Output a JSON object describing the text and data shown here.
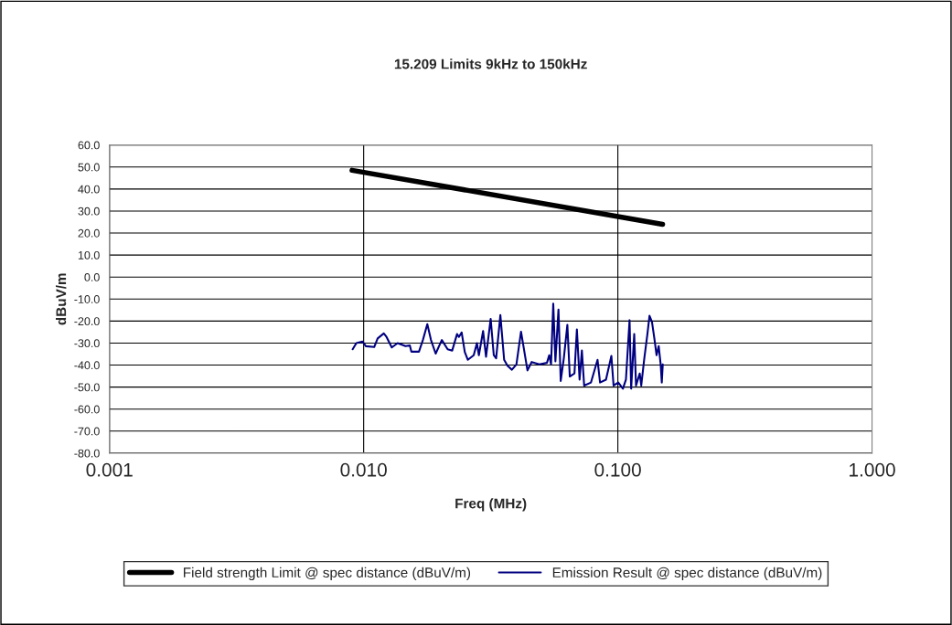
{
  "chart_data": {
    "type": "line",
    "title": "15.209 Limits 9kHz to 150kHz",
    "xlabel": "Freq (MHz)",
    "ylabel": "dBuV/m",
    "log": "x",
    "grid": true,
    "legend": "bottom",
    "xlim": [
      0.001,
      1.0
    ],
    "xticks": [
      {
        "value": 0.001,
        "label": "0.001"
      },
      {
        "value": 0.01,
        "label": "0.010"
      },
      {
        "value": 0.1,
        "label": "0.100"
      },
      {
        "value": 1.0,
        "label": "1.000"
      }
    ],
    "ylim": [
      -80,
      60
    ],
    "yticks": [
      {
        "value": 60,
        "label": "60.0"
      },
      {
        "value": 50,
        "label": "50.0"
      },
      {
        "value": 40,
        "label": "40.0"
      },
      {
        "value": 30,
        "label": "30.0"
      },
      {
        "value": 20,
        "label": "20.0"
      },
      {
        "value": 10,
        "label": "10.0"
      },
      {
        "value": 0,
        "label": "0.0"
      },
      {
        "value": -10,
        "label": "-10.0"
      },
      {
        "value": -20,
        "label": "-20.0"
      },
      {
        "value": -30,
        "label": "-30.0"
      },
      {
        "value": -40,
        "label": "-40.0"
      },
      {
        "value": -50,
        "label": "-50.0"
      },
      {
        "value": -60,
        "label": "-60.0"
      },
      {
        "value": -70,
        "label": "-70.0"
      },
      {
        "value": -80,
        "label": "-80.0"
      }
    ],
    "series": [
      {
        "name": "Field strength Limit @ spec distance (dBuV/m)",
        "color": "#000000",
        "x": [
          0.009,
          0.15
        ],
        "values": [
          48.5,
          24.0
        ]
      },
      {
        "name": "Emission Result @ spec distance (dBuV/m)",
        "color": "#000080",
        "x": [
          0.00905,
          0.00936,
          0.0099,
          0.0102,
          0.011,
          0.01135,
          0.012,
          0.0123,
          0.0129,
          0.0136,
          0.0146,
          0.0152,
          0.0154,
          0.0165,
          0.0171,
          0.0178,
          0.0184,
          0.0192,
          0.0203,
          0.0214,
          0.0223,
          0.0233,
          0.0237,
          0.0243,
          0.025,
          0.0257,
          0.0271,
          0.0279,
          0.0284,
          0.0295,
          0.0303,
          0.0316,
          0.0325,
          0.0332,
          0.0345,
          0.0357,
          0.0368,
          0.0383,
          0.0399,
          0.0416,
          0.0441,
          0.0458,
          0.0491,
          0.0526,
          0.0537,
          0.0546,
          0.0557,
          0.0568,
          0.0584,
          0.0596,
          0.0613,
          0.0633,
          0.0647,
          0.0675,
          0.069,
          0.0707,
          0.0722,
          0.0737,
          0.0784,
          0.0832,
          0.0851,
          0.0898,
          0.0943,
          0.0962,
          0.1004,
          0.1047,
          0.1076,
          0.1112,
          0.1128,
          0.116,
          0.1179,
          0.1219,
          0.1236,
          0.1271,
          0.1307,
          0.1332,
          0.1362,
          0.1392,
          0.142,
          0.1448,
          0.1474,
          0.1489,
          0.1502
        ],
        "values": [
          -32.8,
          -30.0,
          -29.3,
          -31.4,
          -31.8,
          -27.9,
          -25.6,
          -27.2,
          -32.0,
          -30.0,
          -31.4,
          -31.1,
          -33.9,
          -33.9,
          -28.6,
          -21.4,
          -28.6,
          -34.8,
          -28.6,
          -32.8,
          -33.4,
          -25.9,
          -27.2,
          -25.2,
          -34.1,
          -37.6,
          -35.5,
          -30.0,
          -35.5,
          -24.5,
          -36.2,
          -19.0,
          -35.5,
          -36.9,
          -17.3,
          -37.6,
          -40.3,
          -42.1,
          -39.7,
          -24.8,
          -42.4,
          -38.6,
          -39.7,
          -39.0,
          -35.5,
          -39.7,
          -12.1,
          -38.3,
          -14.8,
          -47.2,
          -36.9,
          -21.7,
          -45.2,
          -43.8,
          -23.8,
          -46.6,
          -33.4,
          -49.3,
          -47.9,
          -37.6,
          -47.9,
          -46.6,
          -35.8,
          -49.3,
          -47.9,
          -50.7,
          -46.6,
          -19.6,
          -50.7,
          -25.9,
          -49.3,
          -43.8,
          -49.3,
          -36.9,
          -25.9,
          -17.6,
          -20.3,
          -27.9,
          -35.5,
          -31.4,
          -39.7,
          -47.9,
          -39.7
        ]
      }
    ]
  }
}
